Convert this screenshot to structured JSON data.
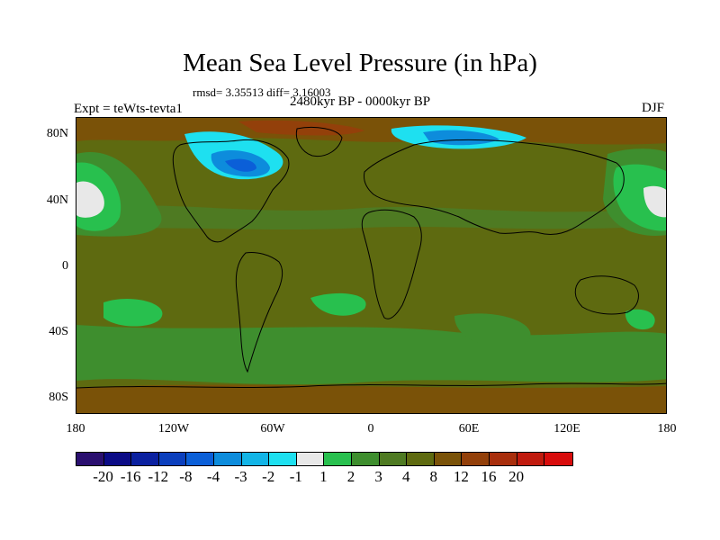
{
  "title": "Mean Sea Level Pressure (in hPa)",
  "stats": "rmsd= 3.35513 diff= 3.16003",
  "period": "2480kyr BP - 0000kyr BP",
  "experiment": "Expt = teWts-tevta1",
  "season": "DJF",
  "lat_labels": [
    "80N",
    "40N",
    "0",
    "40S",
    "80S"
  ],
  "lon_labels": [
    "180",
    "120W",
    "60W",
    "0",
    "60E",
    "120E",
    "180"
  ],
  "colorbar": {
    "colors": [
      "#2a0f6f",
      "#0b0b86",
      "#0b21a0",
      "#0b3fbd",
      "#0b5fd8",
      "#0d8cdc",
      "#12b4e6",
      "#1ee0f0",
      "#e8e8e8",
      "#28c04e",
      "#3e8e2e",
      "#4e7a22",
      "#5e6a10",
      "#7a5208",
      "#93400a",
      "#a82e0c",
      "#c01a0e",
      "#d80c0c"
    ],
    "labels": [
      "-20",
      "-16",
      "-12",
      "-8",
      "-4",
      "-3",
      "-2",
      "-1",
      "1",
      "2",
      "3",
      "4",
      "8",
      "12",
      "16",
      "20"
    ]
  },
  "map_colors": {
    "base": "#5e6a10",
    "level_4": "#4e7a22",
    "level_3": "#3e8e2e",
    "level_2": "#28c04e",
    "level_1": "#e8e8e8",
    "level_8": "#7a5208",
    "level_12": "#93400a",
    "neg_1": "#1ee0f0",
    "neg_3": "#0d8cdc",
    "neg_4": "#0b5fd8"
  }
}
